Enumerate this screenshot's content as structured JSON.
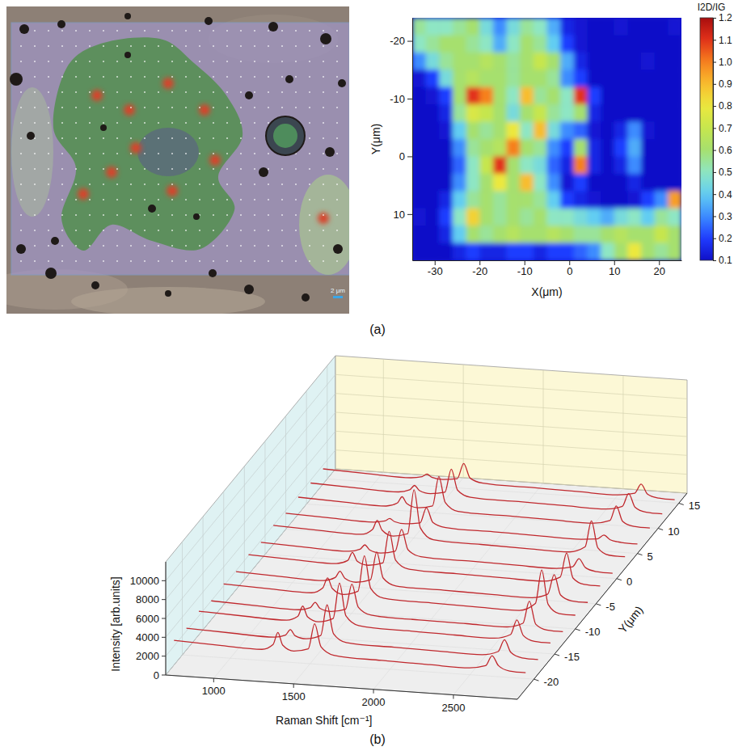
{
  "chart_data": [
    {
      "type": "image",
      "panel_label": "(a)",
      "scale_bar_label": "2 μm"
    },
    {
      "type": "heatmap",
      "x_label": "X(μm)",
      "y_label": "Y(μm)",
      "xlim": [
        -35,
        25
      ],
      "ylim": [
        -24,
        18
      ],
      "xticks": [
        -30,
        -20,
        -10,
        0,
        10,
        20
      ],
      "yticks": [
        -20,
        -10,
        0,
        10
      ],
      "x": [
        -33.5,
        -30.5,
        -27.5,
        -24.5,
        -21.5,
        -18.5,
        -15.5,
        -12.5,
        -9.5,
        -6.5,
        -3.5,
        -0.5,
        2.5,
        5.5,
        8.5,
        11.5,
        14.5,
        17.5,
        20.5,
        23.5
      ],
      "y": [
        -22.5,
        -19.5,
        -16.5,
        -13.5,
        -10.5,
        -7.5,
        -4.5,
        -1.5,
        1.5,
        4.5,
        7.5,
        10.5,
        13.5,
        16.5
      ],
      "z": [
        [
          0.55,
          0.5,
          0.5,
          0.55,
          0.6,
          0.45,
          0.3,
          0.45,
          0.55,
          0.5,
          0.35,
          0.15,
          0.12,
          0.1,
          0.1,
          0.12,
          0.1,
          0.1,
          0.1,
          0.12
        ],
        [
          0.5,
          0.55,
          0.6,
          0.6,
          0.55,
          0.5,
          0.35,
          0.5,
          0.6,
          0.55,
          0.4,
          0.2,
          0.12,
          0.1,
          0.1,
          0.1,
          0.1,
          0.1,
          0.1,
          0.1
        ],
        [
          0.3,
          0.45,
          0.55,
          0.6,
          0.6,
          0.65,
          0.6,
          0.55,
          0.6,
          0.7,
          0.6,
          0.35,
          0.15,
          0.1,
          0.1,
          0.1,
          0.1,
          0.12,
          0.1,
          0.1
        ],
        [
          0.12,
          0.2,
          0.45,
          0.6,
          0.65,
          0.6,
          0.6,
          0.55,
          0.6,
          0.6,
          0.55,
          0.3,
          0.2,
          0.1,
          0.1,
          0.1,
          0.1,
          0.1,
          0.1,
          0.1
        ],
        [
          0.1,
          0.12,
          0.2,
          0.6,
          1.1,
          1.0,
          0.6,
          0.5,
          0.9,
          0.55,
          0.6,
          0.5,
          1.1,
          0.2,
          0.1,
          0.1,
          0.1,
          0.1,
          0.1,
          0.1
        ],
        [
          0.1,
          0.1,
          0.15,
          0.55,
          0.75,
          0.7,
          0.6,
          0.45,
          0.6,
          0.7,
          0.55,
          0.5,
          0.6,
          0.15,
          0.1,
          0.1,
          0.1,
          0.1,
          0.1,
          0.1
        ],
        [
          0.1,
          0.1,
          0.12,
          0.4,
          0.6,
          0.55,
          0.6,
          0.8,
          0.5,
          0.9,
          0.45,
          0.3,
          0.25,
          0.12,
          0.1,
          0.15,
          0.3,
          0.12,
          0.1,
          0.1
        ],
        [
          0.1,
          0.1,
          0.1,
          0.3,
          0.55,
          0.6,
          0.65,
          1.0,
          0.6,
          0.55,
          0.3,
          0.2,
          0.6,
          0.15,
          0.1,
          0.2,
          0.35,
          0.1,
          0.1,
          0.1
        ],
        [
          0.1,
          0.1,
          0.1,
          0.25,
          0.5,
          0.7,
          1.1,
          0.6,
          0.5,
          0.45,
          0.25,
          0.15,
          1.0,
          0.15,
          0.1,
          0.15,
          0.3,
          0.1,
          0.1,
          0.1
        ],
        [
          0.1,
          0.1,
          0.1,
          0.3,
          0.5,
          0.6,
          0.8,
          0.6,
          0.9,
          0.5,
          0.3,
          0.12,
          0.2,
          0.1,
          0.1,
          0.1,
          0.15,
          0.1,
          0.1,
          0.1
        ],
        [
          0.1,
          0.1,
          0.15,
          0.4,
          0.55,
          0.6,
          0.55,
          0.6,
          0.6,
          0.55,
          0.4,
          0.2,
          0.15,
          0.12,
          0.1,
          0.1,
          0.12,
          0.2,
          0.3,
          0.95
        ],
        [
          0.12,
          0.1,
          0.2,
          0.5,
          0.85,
          0.6,
          0.55,
          0.6,
          0.55,
          0.6,
          0.5,
          0.5,
          0.45,
          0.4,
          0.35,
          0.45,
          0.5,
          0.4,
          0.55,
          0.5
        ],
        [
          0.1,
          0.1,
          0.15,
          0.4,
          0.6,
          0.55,
          0.6,
          0.65,
          0.6,
          0.6,
          0.65,
          0.6,
          0.55,
          0.55,
          0.6,
          0.65,
          0.6,
          0.6,
          0.7,
          0.6
        ],
        [
          0.1,
          0.1,
          0.1,
          0.15,
          0.2,
          0.15,
          0.15,
          0.2,
          0.2,
          0.15,
          0.2,
          0.2,
          0.25,
          0.3,
          0.5,
          0.6,
          0.8,
          0.6,
          0.55,
          0.6
        ]
      ],
      "colorbar_label": "I2D/IG",
      "colorbar_range": [
        0.1,
        1.2
      ],
      "colorbar_ticks": [
        0.1,
        0.2,
        0.3,
        0.4,
        0.5,
        0.6,
        0.7,
        0.8,
        0.9,
        {
          "value": 1,
          "label": "1.0"
        },
        1.1,
        1.2
      ]
    },
    {
      "type": "waterfall",
      "panel_label": "(b)",
      "x_label": "Raman Shift [cm⁻¹]",
      "y_label": "Intensity [arb.units]",
      "z_label": "Y(μm)",
      "xlim": [
        700,
        2900
      ],
      "xticks": [
        1000,
        1500,
        2000,
        2500
      ],
      "ylim": [
        0,
        12000
      ],
      "yticks": [
        0,
        2000,
        4000,
        6000,
        8000,
        10000
      ],
      "zlim": [
        -24,
        17
      ],
      "zticks": [
        -20,
        -15,
        -10,
        -5,
        0,
        5,
        10,
        15
      ],
      "color": "#c0282d",
      "grid": true,
      "x": [
        700,
        1000,
        1250,
        1320,
        1350,
        1380,
        1450,
        1540,
        1580,
        1620,
        1700,
        2000,
        2300,
        2550,
        2650,
        2690,
        2730,
        2800,
        2900
      ],
      "series": [
        {
          "position": -22,
          "values": [
            2600,
            2400,
            2300,
            2900,
            4200,
            2900,
            2350,
            2700,
            5400,
            3000,
            2200,
            2000,
            1900,
            1850,
            2200,
            3300,
            2300,
            1800,
            1750
          ]
        },
        {
          "position": -19,
          "values": [
            2300,
            2100,
            2000,
            2300,
            2900,
            2300,
            2050,
            2500,
            5800,
            2800,
            1950,
            1800,
            1700,
            1650,
            2100,
            3400,
            2100,
            1600,
            1550
          ]
        },
        {
          "position": -16,
          "values": [
            2500,
            2300,
            2200,
            2700,
            3800,
            2700,
            2250,
            2700,
            6500,
            3100,
            2150,
            1950,
            1850,
            1800,
            2300,
            3900,
            2300,
            1750,
            1700
          ]
        },
        {
          "position": -13,
          "values": [
            2000,
            1800,
            1700,
            2000,
            2600,
            2000,
            1750,
            2100,
            4800,
            2400,
            1650,
            1500,
            1450,
            1400,
            1900,
            4300,
            1900,
            1350,
            1300
          ]
        },
        {
          "position": -10,
          "values": [
            2200,
            2000,
            1900,
            2500,
            3600,
            2500,
            1950,
            2400,
            6200,
            2800,
            1850,
            1700,
            1600,
            1550,
            2400,
            6000,
            2400,
            1500,
            1450
          ]
        },
        {
          "position": -7,
          "values": [
            1900,
            1700,
            1600,
            2000,
            2700,
            2000,
            1650,
            2000,
            5000,
            2300,
            1550,
            1450,
            1350,
            1300,
            1800,
            3900,
            1800,
            1250,
            1200
          ]
        },
        {
          "position": -4,
          "values": [
            2100,
            1900,
            1800,
            2200,
            3100,
            2200,
            1850,
            2200,
            5600,
            2600,
            1750,
            1600,
            1500,
            1450,
            2000,
            4600,
            2000,
            1400,
            1350
          ]
        },
        {
          "position": -1,
          "values": [
            1800,
            1600,
            1500,
            1800,
            2300,
            1800,
            1550,
            1850,
            4200,
            2100,
            1450,
            1350,
            1250,
            1200,
            1500,
            2400,
            1500,
            1150,
            1100
          ]
        },
        {
          "position": 2,
          "values": [
            2000,
            1800,
            1700,
            2300,
            3300,
            2300,
            1750,
            2100,
            6800,
            2800,
            1650,
            1500,
            1400,
            1350,
            2000,
            4800,
            2000,
            1300,
            1250
          ]
        },
        {
          "position": 5,
          "values": [
            1700,
            1500,
            1400,
            1600,
            1900,
            1600,
            1450,
            1650,
            3300,
            1800,
            1350,
            1250,
            1150,
            1100,
            1250,
            1700,
            1250,
            1050,
            1000
          ]
        },
        {
          "position": 8,
          "values": [
            1800,
            1600,
            1500,
            1900,
            2600,
            1900,
            1550,
            1850,
            5000,
            2300,
            1450,
            1350,
            1250,
            1200,
            1600,
            3200,
            1600,
            1150,
            1100
          ]
        },
        {
          "position": 11,
          "values": [
            1700,
            1500,
            1400,
            1700,
            2200,
            1700,
            1450,
            1700,
            4200,
            2000,
            1350,
            1250,
            1150,
            1100,
            1500,
            2900,
            1500,
            1050,
            1000
          ]
        },
        {
          "position": 14,
          "values": [
            1600,
            1400,
            1300,
            1500,
            1800,
            1500,
            1350,
            1550,
            3200,
            1700,
            1250,
            1150,
            1050,
            1000,
            1300,
            2300,
            1300,
            950,
            900
          ]
        }
      ]
    }
  ]
}
